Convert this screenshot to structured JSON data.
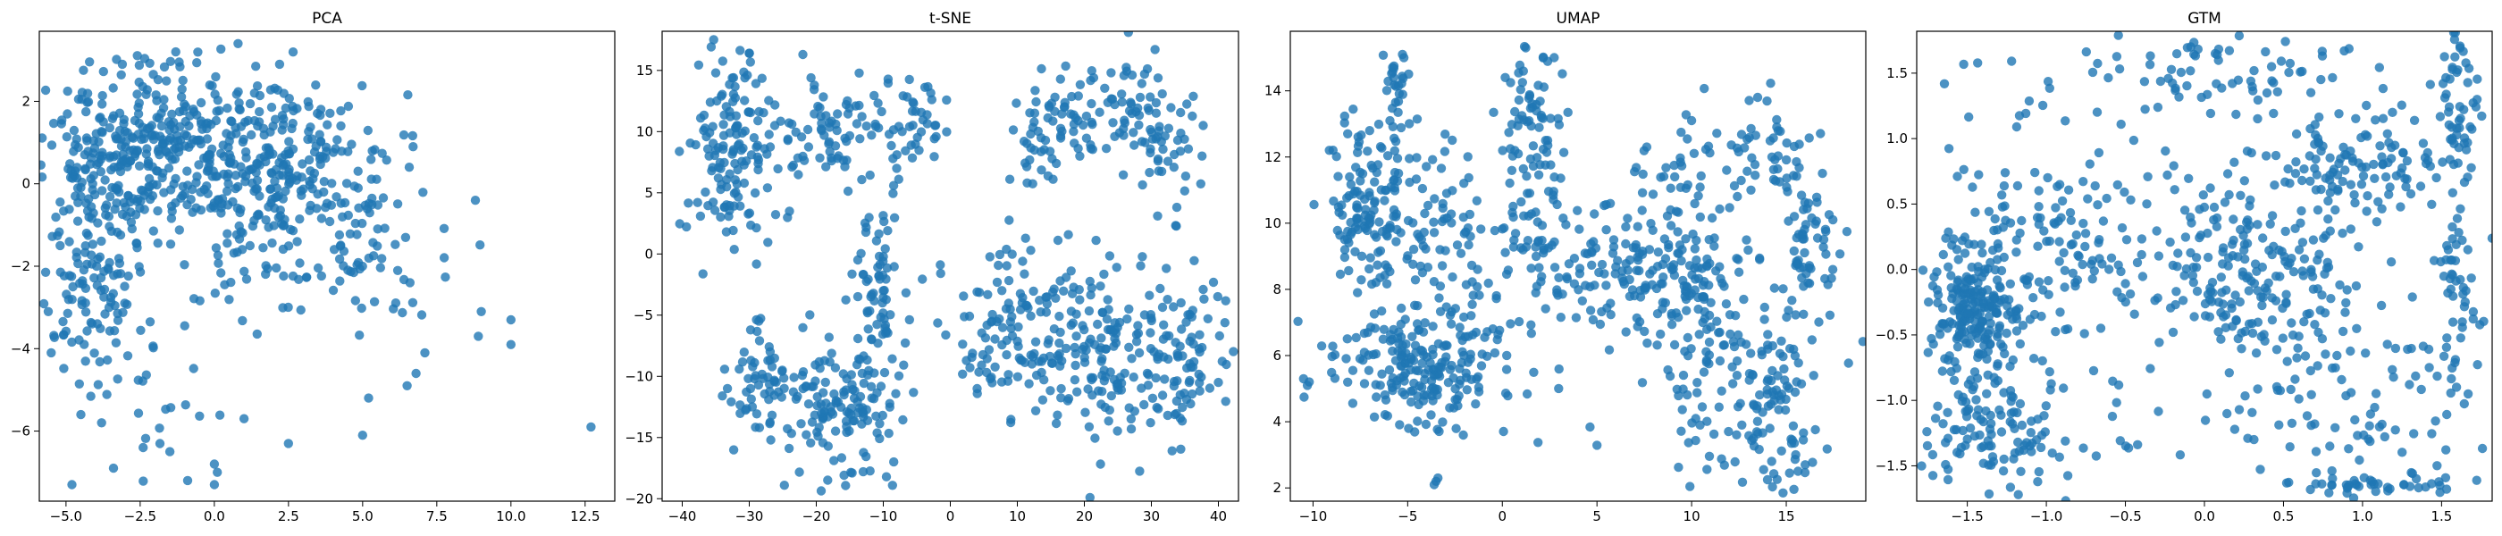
{
  "point_color": "#1f77b4",
  "chart_data": [
    {
      "type": "scatter",
      "title": "PCA",
      "xlabel": "",
      "ylabel": "",
      "xlim": [
        -5.9,
        13.5
      ],
      "ylim": [
        -7.7,
        3.7
      ],
      "xticks": [
        -5.0,
        -2.5,
        0.0,
        2.5,
        5.0,
        7.5,
        10.0,
        12.5
      ],
      "xtick_labels": [
        "−5.0",
        "−2.5",
        "0.0",
        "2.5",
        "5.0",
        "7.5",
        "10.0",
        "12.5"
      ],
      "yticks": [
        -6,
        -4,
        -2,
        0,
        2
      ],
      "ytick_labels": [
        "−6",
        "−4",
        "−2",
        "0",
        "2"
      ],
      "grid": false,
      "clusters": [
        {
          "cx": -3.6,
          "cy": 0.6,
          "sx": 1.3,
          "sy": 1.1,
          "n": 190
        },
        {
          "cx": -0.9,
          "cy": 1.0,
          "sx": 1.4,
          "sy": 1.0,
          "n": 210
        },
        {
          "cx": 2.6,
          "cy": 0.4,
          "sx": 1.6,
          "sy": 1.0,
          "n": 200
        },
        {
          "cx": -4.2,
          "cy": -2.6,
          "sx": 0.8,
          "sy": 1.0,
          "n": 90
        },
        {
          "cx": 1.5,
          "cy": -1.3,
          "sx": 2.0,
          "sy": 1.0,
          "n": 70
        },
        {
          "cx": 5.5,
          "cy": -1.6,
          "sx": 1.3,
          "sy": 0.9,
          "n": 45
        },
        {
          "cx": -2.5,
          "cy": -4.8,
          "sx": 1.3,
          "sy": 1.1,
          "n": 25
        }
      ],
      "points": [
        [
          -4.8,
          -7.3
        ],
        [
          -3.4,
          -6.9
        ],
        [
          -1.5,
          -6.5
        ],
        [
          0.0,
          -6.8
        ],
        [
          0.1,
          -7.0
        ],
        [
          0.0,
          -7.3
        ],
        [
          -0.9,
          -7.2
        ],
        [
          2.5,
          -6.3
        ],
        [
          5.0,
          -6.1
        ],
        [
          5.2,
          -5.2
        ],
        [
          6.5,
          -4.9
        ],
        [
          6.8,
          -4.6
        ],
        [
          7.1,
          -4.1
        ],
        [
          8.9,
          -3.7
        ],
        [
          10.0,
          -3.9
        ],
        [
          10.0,
          -3.3
        ],
        [
          9.0,
          -3.1
        ],
        [
          12.7,
          -5.9
        ],
        [
          8.8,
          -0.4
        ],
        [
          6.7,
          0.9
        ],
        [
          1.0,
          -5.7
        ],
        [
          -2.4,
          -6.4
        ],
        [
          -3.8,
          -5.8
        ],
        [
          -4.5,
          -5.6
        ],
        [
          -5.5,
          -4.1
        ],
        [
          -5.6,
          -3.1
        ],
        [
          0.8,
          3.4
        ],
        [
          -1.3,
          3.2
        ],
        [
          2.2,
          2.9
        ],
        [
          -3.1,
          2.9
        ]
      ]
    },
    {
      "type": "scatter",
      "title": "t-SNE",
      "xlabel": "",
      "ylabel": "",
      "xlim": [
        -43,
        43
      ],
      "ylim": [
        -20.2,
        18.2
      ],
      "xticks": [
        -40,
        -30,
        -20,
        -10,
        0,
        10,
        20,
        30,
        40
      ],
      "xtick_labels": [
        "−40",
        "−30",
        "−20",
        "−10",
        "0",
        "10",
        "20",
        "30",
        "40"
      ],
      "yticks": [
        -20,
        -15,
        -10,
        -5,
        0,
        5,
        10,
        15
      ],
      "ytick_labels": [
        "−20",
        "−15",
        "−10",
        "−5",
        "0",
        "5",
        "10",
        "15"
      ],
      "grid": false,
      "clusters": [
        {
          "cx": -33,
          "cy": 8,
          "sx": 3,
          "sy": 4.5,
          "n": 140
        },
        {
          "cx": -18,
          "cy": 10,
          "sx": 5,
          "sy": 2.2,
          "n": 80
        },
        {
          "cx": -5,
          "cy": 11,
          "sx": 2.5,
          "sy": 2.5,
          "n": 35
        },
        {
          "cx": -28,
          "cy": -10,
          "sx": 3,
          "sy": 2.4,
          "n": 60
        },
        {
          "cx": -17,
          "cy": -13,
          "sx": 4,
          "sy": 3,
          "n": 120
        },
        {
          "cx": -11,
          "cy": -4,
          "sx": 2,
          "sy": 4.5,
          "n": 80
        },
        {
          "cx": 23,
          "cy": 12,
          "sx": 5.5,
          "sy": 2,
          "n": 80
        },
        {
          "cx": 13,
          "cy": 9,
          "sx": 3,
          "sy": 2,
          "n": 35
        },
        {
          "cx": 32,
          "cy": 9,
          "sx": 2.5,
          "sy": 2.5,
          "n": 45
        },
        {
          "cx": 12,
          "cy": -6,
          "sx": 7,
          "sy": 3,
          "n": 160
        },
        {
          "cx": 22,
          "cy": -9,
          "sx": 4,
          "sy": 4,
          "n": 90
        },
        {
          "cx": 35,
          "cy": -8,
          "sx": 4,
          "sy": 3,
          "n": 90
        }
      ],
      "points": [
        [
          -13,
          -17.8
        ],
        [
          -22,
          16.3
        ],
        [
          -30,
          16.4
        ],
        [
          -24,
          3.5
        ],
        [
          -10,
          -3
        ],
        [
          4,
          -11
        ],
        [
          40,
          -10.5
        ],
        [
          -8,
          7
        ],
        [
          27,
          -14.3
        ],
        [
          -35,
          14.8
        ]
      ]
    },
    {
      "type": "scatter",
      "title": "UMAP",
      "xlabel": "",
      "ylabel": "",
      "xlim": [
        -11.2,
        19.2
      ],
      "ylim": [
        1.6,
        15.8
      ],
      "xticks": [
        -10,
        -5,
        0,
        5,
        10,
        15
      ],
      "xtick_labels": [
        "−10",
        "−5",
        "0",
        "5",
        "10",
        "15"
      ],
      "yticks": [
        2,
        4,
        6,
        8,
        10,
        12,
        14
      ],
      "ytick_labels": [
        "2",
        "4",
        "6",
        "8",
        "10",
        "12",
        "14"
      ],
      "grid": false,
      "clusters": [
        {
          "cx": -7,
          "cy": 10.5,
          "sx": 1.2,
          "sy": 1.4,
          "n": 140
        },
        {
          "cx": -5.5,
          "cy": 14,
          "sx": 0.4,
          "sy": 0.7,
          "n": 25
        },
        {
          "cx": -3,
          "cy": 9,
          "sx": 1.5,
          "sy": 2,
          "n": 90
        },
        {
          "cx": 1.5,
          "cy": 13.5,
          "sx": 0.8,
          "sy": 1,
          "n": 45
        },
        {
          "cx": 1.7,
          "cy": 10.5,
          "sx": 1.2,
          "sy": 1.5,
          "n": 70
        },
        {
          "cx": -4,
          "cy": 5.5,
          "sx": 2.5,
          "sy": 0.9,
          "n": 200
        },
        {
          "cx": 8,
          "cy": 8.5,
          "sx": 3,
          "sy": 1,
          "n": 170
        },
        {
          "cx": 11,
          "cy": 6,
          "sx": 2,
          "sy": 1.6,
          "n": 110
        },
        {
          "cx": 14.5,
          "cy": 4.5,
          "sx": 1.2,
          "sy": 1.3,
          "n": 80
        },
        {
          "cx": 14,
          "cy": 12,
          "sx": 1.6,
          "sy": 0.8,
          "n": 60
        },
        {
          "cx": 16.5,
          "cy": 9.5,
          "sx": 0.8,
          "sy": 0.8,
          "n": 50
        },
        {
          "cx": 9,
          "cy": 11,
          "sx": 1,
          "sy": 1,
          "n": 35
        }
      ],
      "points": [
        [
          -10.2,
          5.2
        ],
        [
          -10.5,
          5.3
        ],
        [
          -10.3,
          5.1
        ],
        [
          -3.5,
          2.2
        ],
        [
          -3.4,
          2.3
        ],
        [
          -3.6,
          2.1
        ],
        [
          -5.2,
          15
        ],
        [
          10,
          13.1
        ],
        [
          16,
          2.7
        ],
        [
          15.5,
          3.0
        ]
      ]
    },
    {
      "type": "scatter",
      "title": "GTM",
      "xlabel": "",
      "ylabel": "",
      "xlim": [
        -1.82,
        1.82
      ],
      "ylim": [
        -1.77,
        1.82
      ],
      "xticks": [
        -1.5,
        -1.0,
        -0.5,
        0.0,
        0.5,
        1.0,
        1.5
      ],
      "xtick_labels": [
        "−1.5",
        "−1.0",
        "−0.5",
        "0.0",
        "0.5",
        "1.0",
        "1.5"
      ],
      "yticks": [
        -1.5,
        -1.0,
        -0.5,
        0.0,
        0.5,
        1.0,
        1.5
      ],
      "ytick_labels": [
        "−1.5",
        "−1.0",
        "−0.5",
        "0.0",
        "0.5",
        "1.0",
        "1.5"
      ],
      "grid": false,
      "clusters": [
        {
          "cx": -1.45,
          "cy": -0.3,
          "sx": 0.15,
          "sy": 0.25,
          "n": 200
        },
        {
          "cx": -1.3,
          "cy": -1.2,
          "sx": 0.25,
          "sy": 0.25,
          "n": 110
        },
        {
          "cx": 0.35,
          "cy": 0.0,
          "sx": 0.3,
          "sy": 0.35,
          "n": 170
        },
        {
          "cx": 1.0,
          "cy": 0.8,
          "sx": 0.25,
          "sy": 0.2,
          "n": 90
        },
        {
          "cx": 1.6,
          "cy": 1.3,
          "sx": 0.07,
          "sy": 0.35,
          "n": 50
        },
        {
          "cx": 1.6,
          "cy": 0.0,
          "sx": 0.07,
          "sy": 0.5,
          "n": 50
        },
        {
          "cx": 1.1,
          "cy": -1.64,
          "sx": 0.3,
          "sy": 0.03,
          "n": 40
        },
        {
          "cx": -0.9,
          "cy": 0.2,
          "sx": 0.35,
          "sy": 0.35,
          "n": 110
        },
        {
          "cx": 1.0,
          "cy": -1.0,
          "sx": 0.4,
          "sy": 0.35,
          "n": 60
        },
        {
          "cx": 0.0,
          "cy": 1.5,
          "sx": 0.6,
          "sy": 0.15,
          "n": 60
        }
      ],
      "uniform_fill": 180,
      "points": []
    }
  ]
}
